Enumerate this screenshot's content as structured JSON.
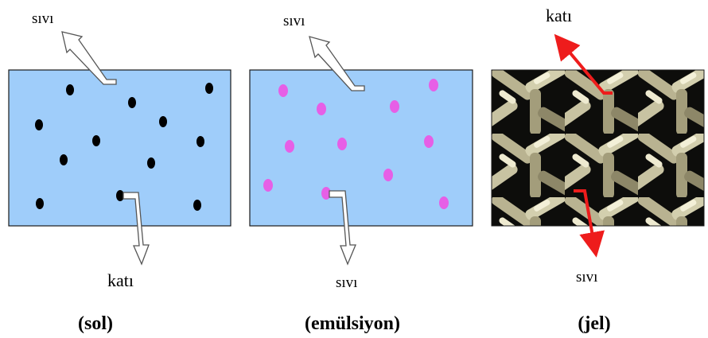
{
  "colors": {
    "liquid": "#9fcdfa",
    "solid_particle": "#000000",
    "emulsion_droplet": "#e65fe6",
    "gel_arrow": "#ee1c1c",
    "outline_arrow": "#ffffff"
  },
  "panels": [
    {
      "caption": "(sol)",
      "top_label": "sıvı",
      "bottom_label": "katı"
    },
    {
      "caption": "(emülsiyon)",
      "top_label": "sıvı",
      "bottom_label": "sıvı"
    },
    {
      "caption": "(jel)",
      "top_label": "katı",
      "bottom_label": "sıvı"
    }
  ]
}
